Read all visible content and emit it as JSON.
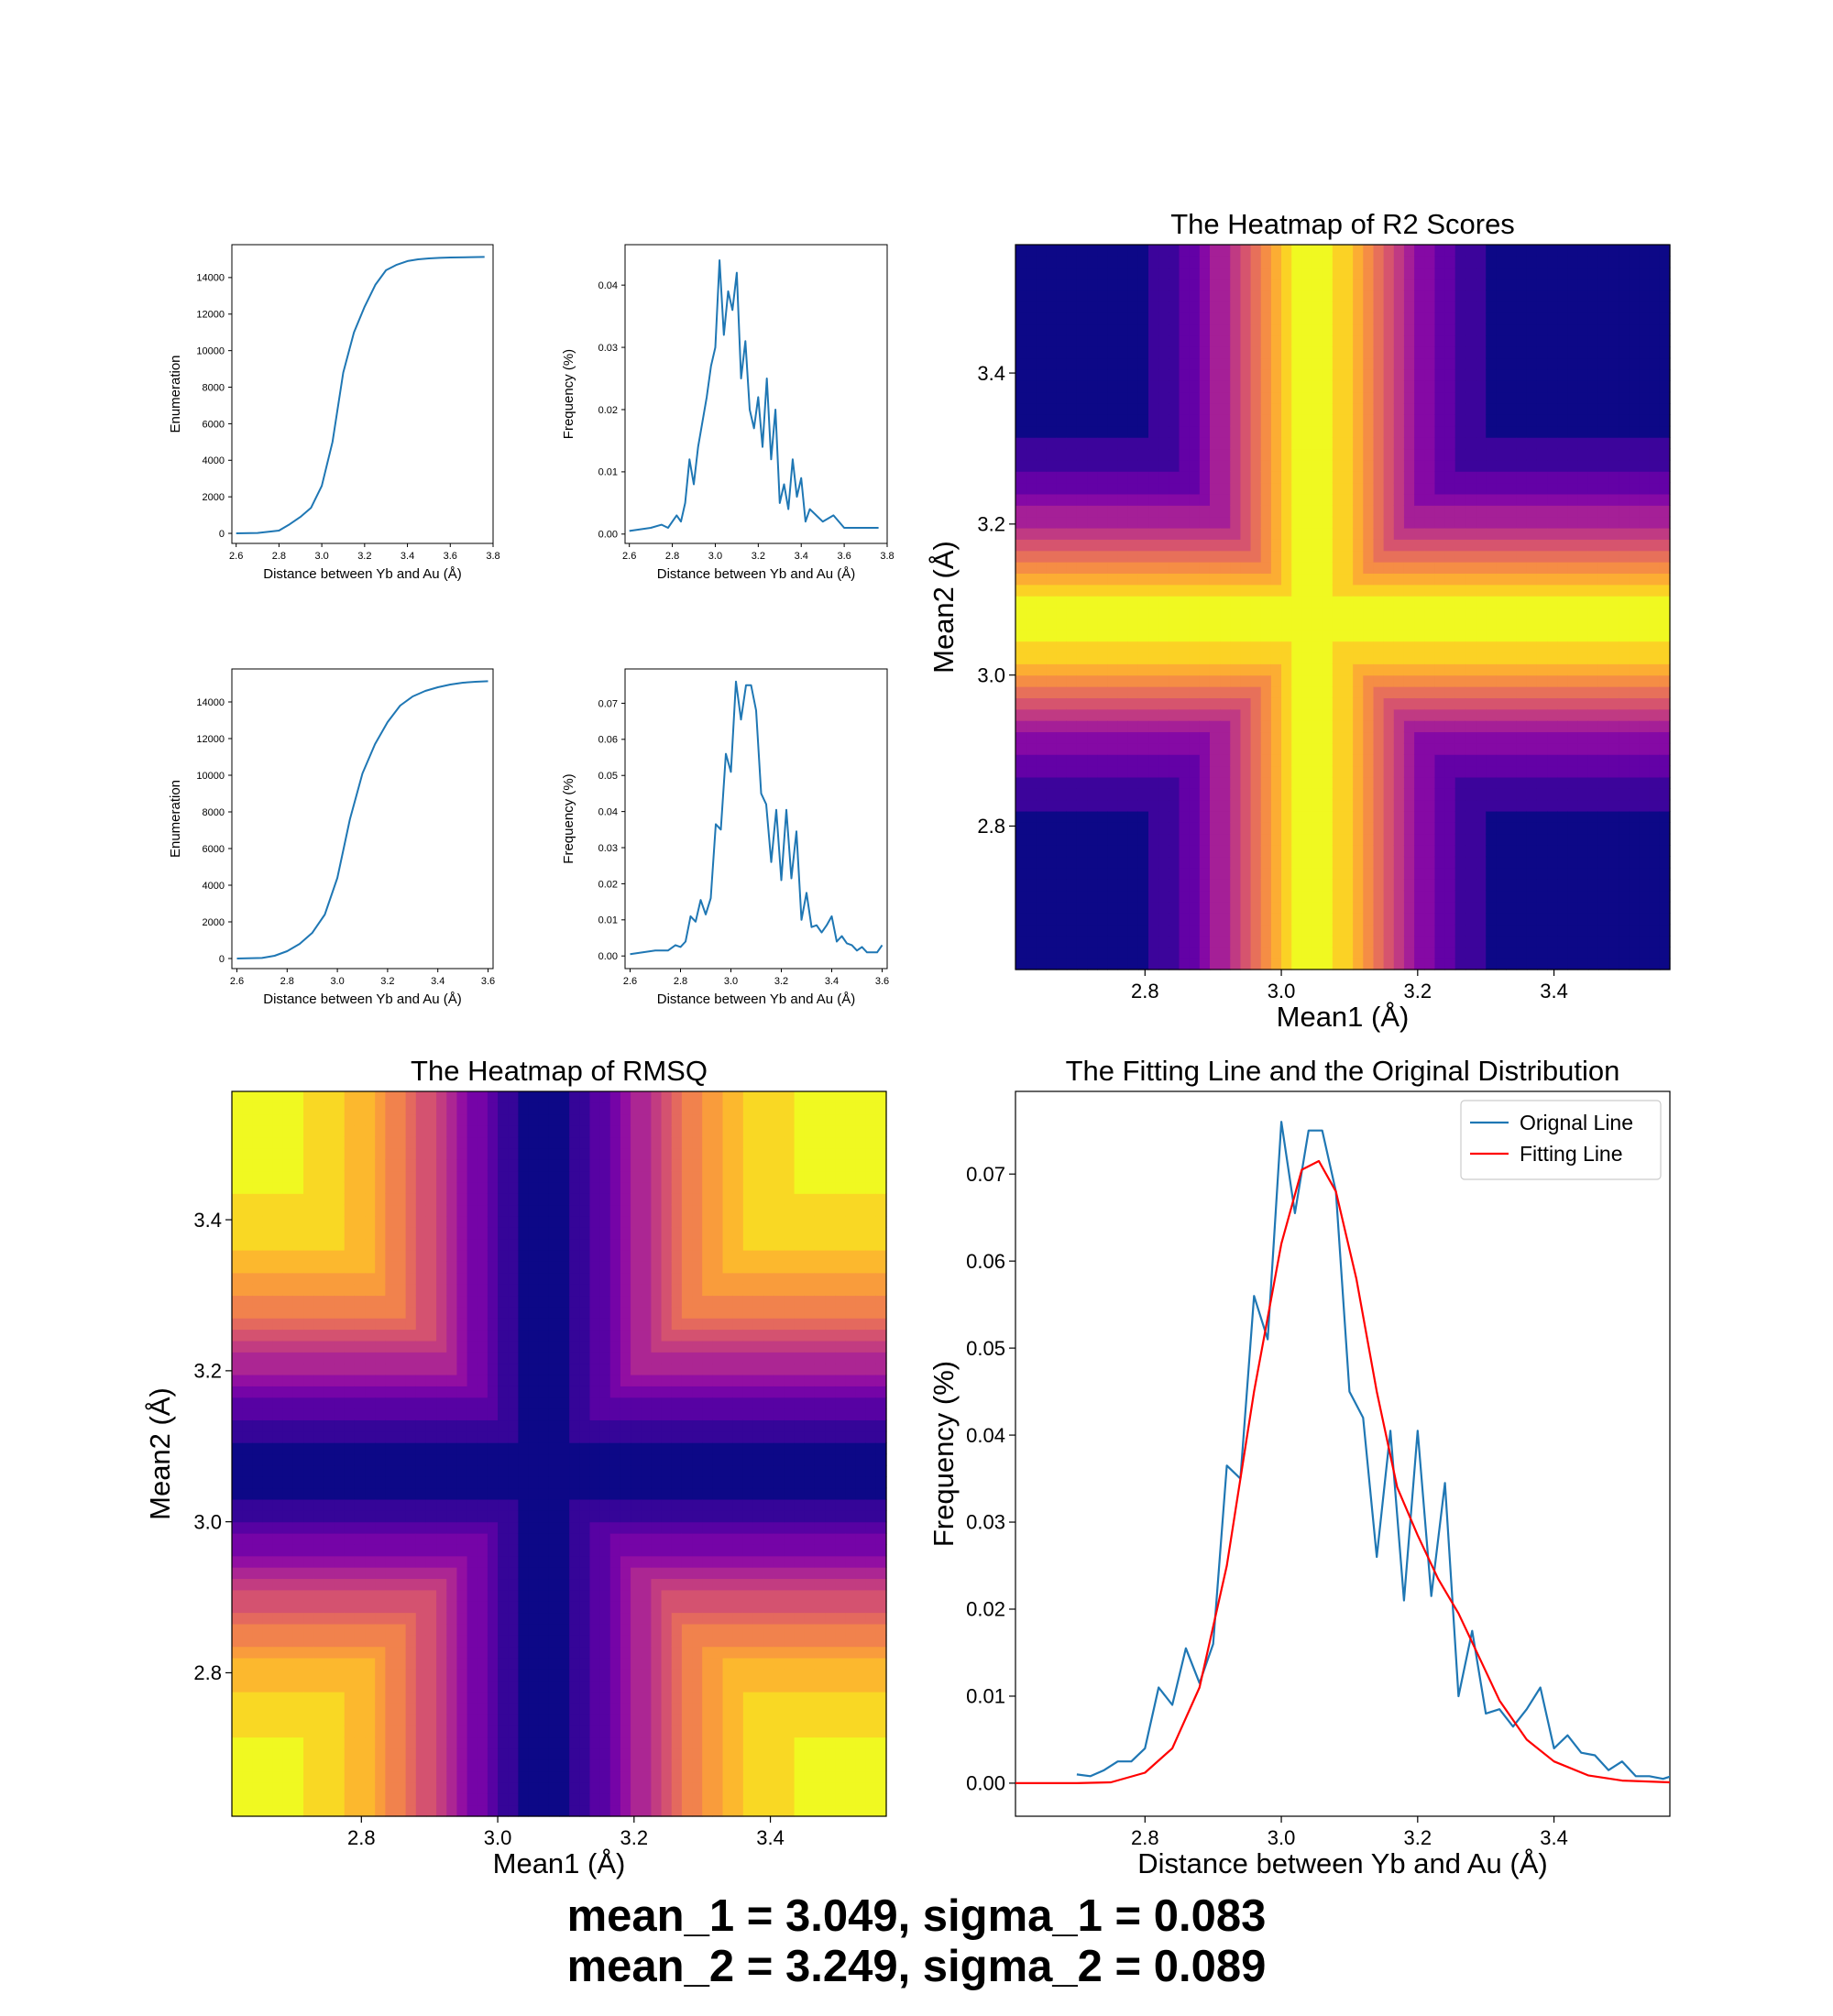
{
  "colors": {
    "line_blue": "#1f77b4",
    "fit_red": "#ff0000",
    "colormap": "plasma",
    "colormap_stops": [
      "#0d0887",
      "#41049d",
      "#6a00a8",
      "#8f0da4",
      "#b12a90",
      "#cc4778",
      "#e16462",
      "#f2844b",
      "#fca636",
      "#fcce25",
      "#f0f921"
    ]
  },
  "chart_data": [
    {
      "id": "cum1",
      "type": "line",
      "xlabel": "Distance between Yb and Au (Å)",
      "ylabel": "Enumeration",
      "xlim": [
        2.58,
        3.8
      ],
      "ylim": [
        -550,
        15800
      ],
      "xticks": [
        "2.6",
        "2.8",
        "3.0",
        "3.2",
        "3.4",
        "3.6",
        "3.8"
      ],
      "yticks": [
        "0",
        "2000",
        "4000",
        "6000",
        "8000",
        "10000",
        "12000",
        "14000"
      ],
      "series": [
        {
          "x": [
            2.6,
            2.7,
            2.8,
            2.85,
            2.9,
            2.95,
            3.0,
            3.05,
            3.1,
            3.15,
            3.2,
            3.25,
            3.3,
            3.35,
            3.4,
            3.45,
            3.5,
            3.55,
            3.6,
            3.7,
            3.76
          ],
          "y": [
            0,
            20,
            150,
            500,
            900,
            1400,
            2600,
            5000,
            8800,
            11000,
            12400,
            13600,
            14400,
            14700,
            14900,
            15000,
            15050,
            15080,
            15100,
            15120,
            15130
          ]
        }
      ]
    },
    {
      "id": "freq1",
      "type": "line",
      "xlabel": "Distance between Yb and Au (Å)",
      "ylabel": "Frequency (%)",
      "xlim": [
        2.58,
        3.8
      ],
      "ylim": [
        -0.0015,
        0.0465
      ],
      "xticks": [
        "2.6",
        "2.8",
        "3.0",
        "3.2",
        "3.4",
        "3.6",
        "3.8"
      ],
      "yticks": [
        "0.00",
        "0.01",
        "0.02",
        "0.03",
        "0.04"
      ],
      "series": [
        {
          "x": [
            2.6,
            2.7,
            2.75,
            2.78,
            2.8,
            2.82,
            2.84,
            2.86,
            2.88,
            2.9,
            2.92,
            2.94,
            2.96,
            2.98,
            3.0,
            3.02,
            3.04,
            3.06,
            3.08,
            3.1,
            3.12,
            3.14,
            3.16,
            3.18,
            3.2,
            3.22,
            3.24,
            3.26,
            3.28,
            3.3,
            3.32,
            3.34,
            3.36,
            3.38,
            3.4,
            3.42,
            3.44,
            3.5,
            3.55,
            3.6,
            3.7,
            3.76
          ],
          "y": [
            0.0005,
            0.001,
            0.0015,
            0.001,
            0.002,
            0.003,
            0.002,
            0.005,
            0.012,
            0.008,
            0.014,
            0.018,
            0.022,
            0.027,
            0.03,
            0.044,
            0.032,
            0.039,
            0.036,
            0.042,
            0.025,
            0.031,
            0.02,
            0.017,
            0.022,
            0.014,
            0.025,
            0.012,
            0.02,
            0.005,
            0.008,
            0.004,
            0.012,
            0.006,
            0.009,
            0.002,
            0.004,
            0.002,
            0.003,
            0.001,
            0.001,
            0.001
          ]
        }
      ]
    },
    {
      "id": "cum2",
      "type": "line",
      "xlabel": "Distance between Yb and Au (Å)",
      "ylabel": "Enumeration",
      "xlim": [
        2.58,
        3.62
      ],
      "ylim": [
        -550,
        15800
      ],
      "xticks": [
        "2.6",
        "2.8",
        "3.0",
        "3.2",
        "3.4",
        "3.6"
      ],
      "yticks": [
        "0",
        "2000",
        "4000",
        "6000",
        "8000",
        "10000",
        "12000",
        "14000"
      ],
      "series": [
        {
          "x": [
            2.6,
            2.7,
            2.75,
            2.8,
            2.85,
            2.9,
            2.95,
            3.0,
            3.05,
            3.1,
            3.15,
            3.2,
            3.25,
            3.3,
            3.35,
            3.4,
            3.45,
            3.5,
            3.55,
            3.6
          ],
          "y": [
            0,
            30,
            150,
            400,
            800,
            1400,
            2400,
            4400,
            7600,
            10100,
            11700,
            12900,
            13800,
            14300,
            14600,
            14800,
            14950,
            15050,
            15100,
            15130
          ]
        }
      ]
    },
    {
      "id": "freq2",
      "type": "line",
      "xlabel": "Distance between Yb and Au (Å)",
      "ylabel": "Frequency (%)",
      "xlim": [
        2.58,
        3.62
      ],
      "ylim": [
        -0.0035,
        0.0795
      ],
      "xticks": [
        "2.6",
        "2.8",
        "3.0",
        "3.2",
        "3.4",
        "3.6"
      ],
      "yticks": [
        "0.00",
        "0.01",
        "0.02",
        "0.03",
        "0.04",
        "0.05",
        "0.06",
        "0.07"
      ],
      "series": [
        {
          "x": [
            2.6,
            2.7,
            2.75,
            2.78,
            2.8,
            2.82,
            2.84,
            2.86,
            2.88,
            2.9,
            2.92,
            2.94,
            2.96,
            2.98,
            3.0,
            3.02,
            3.04,
            3.06,
            3.08,
            3.1,
            3.12,
            3.14,
            3.16,
            3.18,
            3.2,
            3.22,
            3.24,
            3.26,
            3.28,
            3.3,
            3.32,
            3.34,
            3.36,
            3.38,
            3.4,
            3.42,
            3.44,
            3.46,
            3.48,
            3.5,
            3.52,
            3.54,
            3.56,
            3.58,
            3.6
          ],
          "y": [
            0.0005,
            0.0015,
            0.0015,
            0.003,
            0.0025,
            0.004,
            0.011,
            0.0095,
            0.0155,
            0.0115,
            0.016,
            0.0365,
            0.035,
            0.056,
            0.051,
            0.076,
            0.0655,
            0.075,
            0.075,
            0.068,
            0.045,
            0.042,
            0.026,
            0.0405,
            0.021,
            0.0405,
            0.0215,
            0.0345,
            0.01,
            0.0175,
            0.008,
            0.0085,
            0.0065,
            0.0085,
            0.011,
            0.004,
            0.0055,
            0.0035,
            0.003,
            0.0015,
            0.0025,
            0.001,
            0.001,
            0.001,
            0.003
          ]
        }
      ]
    },
    {
      "id": "r2",
      "type": "heatmap",
      "title": "The Heatmap of R2 Scores",
      "xlabel": "Mean1 (Å)",
      "ylabel": "Mean2 (Å)",
      "xlim": [
        2.61,
        3.57
      ],
      "ylim": [
        2.61,
        3.57
      ],
      "xticks": [
        "2.8",
        "3.0",
        "3.2",
        "3.4"
      ],
      "yticks": [
        "2.8",
        "3.0",
        "3.2",
        "3.4"
      ],
      "center": [
        3.05,
        3.07
      ],
      "sigma": 0.14,
      "levels": 12
    },
    {
      "id": "rmsq",
      "type": "heatmap",
      "title": "The Heatmap of RMSQ",
      "xlabel": "Mean1 (Å)",
      "ylabel": "Mean2 (Å)",
      "xlim": [
        2.61,
        3.57
      ],
      "ylim": [
        2.61,
        3.57
      ],
      "xticks": [
        "2.8",
        "3.0",
        "3.2",
        "3.4"
      ],
      "yticks": [
        "2.8",
        "3.0",
        "3.2",
        "3.4"
      ],
      "center": [
        3.07,
        3.07
      ],
      "sigma": 0.2,
      "levels": 14
    },
    {
      "id": "fit",
      "type": "line",
      "title": "The Fitting Line and the Original Distribution",
      "xlabel": "Distance between Yb and Au (Å)",
      "ylabel": "Frequency (%)",
      "xlim": [
        2.61,
        3.57
      ],
      "ylim": [
        -0.0038,
        0.0795
      ],
      "xticks": [
        "2.8",
        "3.0",
        "3.2",
        "3.4"
      ],
      "yticks": [
        "0.00",
        "0.01",
        "0.02",
        "0.03",
        "0.04",
        "0.05",
        "0.06",
        "0.07"
      ],
      "legend": [
        "Orignal Line",
        "Fitting Line"
      ],
      "series": [
        {
          "name": "Orignal Line",
          "x": [
            2.7,
            2.72,
            2.74,
            2.76,
            2.78,
            2.8,
            2.82,
            2.84,
            2.86,
            2.88,
            2.9,
            2.92,
            2.94,
            2.96,
            2.98,
            3.0,
            3.02,
            3.04,
            3.06,
            3.08,
            3.1,
            3.12,
            3.14,
            3.16,
            3.18,
            3.2,
            3.22,
            3.24,
            3.26,
            3.28,
            3.3,
            3.32,
            3.34,
            3.36,
            3.38,
            3.4,
            3.42,
            3.44,
            3.46,
            3.48,
            3.5,
            3.52,
            3.54,
            3.56,
            3.58
          ],
          "y": [
            0.001,
            0.0008,
            0.0015,
            0.0025,
            0.0025,
            0.004,
            0.011,
            0.009,
            0.0155,
            0.0115,
            0.016,
            0.0365,
            0.035,
            0.056,
            0.051,
            0.076,
            0.0655,
            0.075,
            0.075,
            0.068,
            0.045,
            0.042,
            0.026,
            0.0405,
            0.021,
            0.0405,
            0.0215,
            0.0345,
            0.01,
            0.0175,
            0.008,
            0.0085,
            0.0065,
            0.0085,
            0.011,
            0.004,
            0.0055,
            0.0035,
            0.0032,
            0.0015,
            0.0025,
            0.0008,
            0.0008,
            0.0005,
            0.001
          ]
        },
        {
          "name": "Fitting Line",
          "x": [
            2.6,
            2.65,
            2.7,
            2.75,
            2.8,
            2.84,
            2.88,
            2.92,
            2.96,
            3.0,
            3.03,
            3.055,
            3.08,
            3.11,
            3.14,
            3.17,
            3.2,
            3.23,
            3.26,
            3.29,
            3.32,
            3.36,
            3.4,
            3.45,
            3.5,
            3.57
          ],
          "y": [
            0,
            0,
            0,
            0.0001,
            0.0012,
            0.004,
            0.011,
            0.025,
            0.045,
            0.062,
            0.0705,
            0.0715,
            0.068,
            0.058,
            0.045,
            0.034,
            0.0285,
            0.0235,
            0.0195,
            0.0145,
            0.0095,
            0.005,
            0.0025,
            0.0009,
            0.0003,
            0.0001
          ]
        }
      ]
    }
  ],
  "caption": {
    "line1": "mean_1 = 3.049, sigma_1 = 0.083",
    "line2": "mean_2 = 3.249, sigma_2 = 0.089"
  }
}
